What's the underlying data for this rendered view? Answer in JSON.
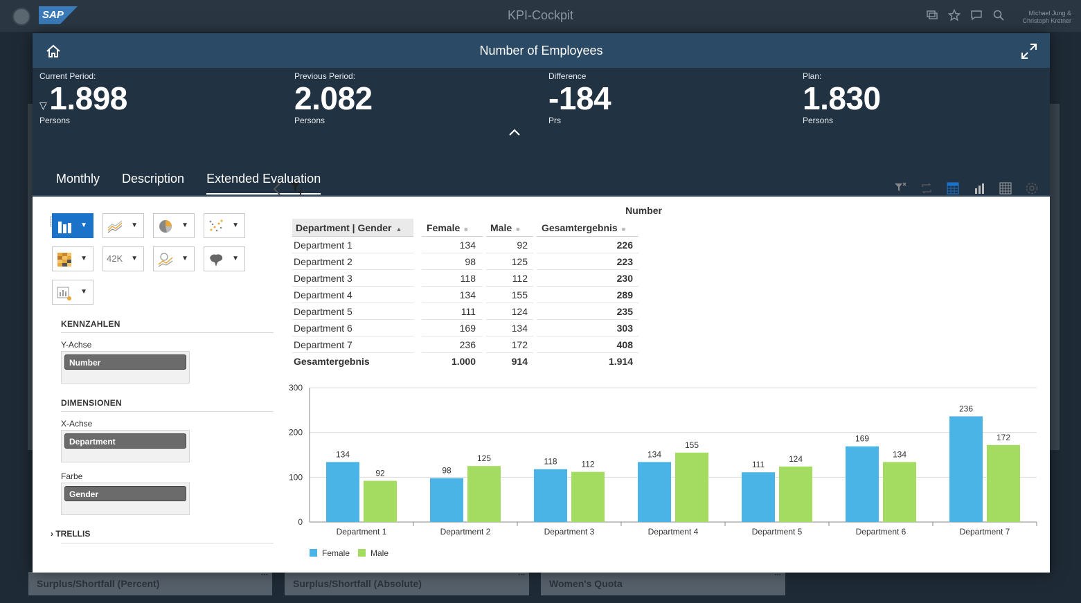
{
  "shell": {
    "title": "KPI-Cockpit",
    "logo": "SAP",
    "user_line1": "Michael Jung &",
    "user_line2": "Christoph Kretner"
  },
  "dialog": {
    "title": "Number of Employees",
    "kpis": [
      {
        "label": "Current Period:",
        "value": "1.898",
        "unit": "Persons",
        "trend": "▽"
      },
      {
        "label": "Previous Period:",
        "value": "2.082",
        "unit": "Persons"
      },
      {
        "label": "Difference",
        "value": "-184",
        "unit": "Prs"
      },
      {
        "label": "Plan:",
        "value": "1.830",
        "unit": "Persons"
      }
    ],
    "tabs": [
      "Monthly",
      "Description",
      "Extended Evaluation"
    ],
    "active_tab": "Extended Evaluation"
  },
  "panel": {
    "kennzahlen": "KENNZAHLEN",
    "y_axis_label": "Y-Achse",
    "y_axis_value": "Number",
    "dimensionen": "DIMENSIONEN",
    "x_axis_label": "X-Achse",
    "x_axis_value": "Department",
    "color_label": "Farbe",
    "color_value": "Gender",
    "trellis": "TRELLIS",
    "kpi_tile_text": "42K"
  },
  "table": {
    "measure": "Number",
    "headers": [
      "Department | Gender",
      "Female",
      "Male",
      "Gesamtergebnis"
    ],
    "rows": [
      [
        "Department 1",
        "134",
        "92",
        "226"
      ],
      [
        "Department 2",
        "98",
        "125",
        "223"
      ],
      [
        "Department 3",
        "118",
        "112",
        "230"
      ],
      [
        "Department 4",
        "134",
        "155",
        "289"
      ],
      [
        "Department 5",
        "111",
        "124",
        "235"
      ],
      [
        "Department 6",
        "169",
        "134",
        "303"
      ],
      [
        "Department 7",
        "236",
        "172",
        "408"
      ]
    ],
    "total": [
      "Gesamtergebnis",
      "1.000",
      "914",
      "1.914"
    ]
  },
  "background_cards": [
    "Surplus/Shortfall (Percent)",
    "Surplus/Shortfall (Absolute)",
    "Women's Quota"
  ],
  "colors": {
    "female": "#4bb4e6",
    "male": "#a4dc62",
    "header": "#2b4a66",
    "kpi_bg": "#213242",
    "accent": "#1b73c9"
  },
  "chart_data": {
    "type": "bar",
    "categories": [
      "Department 1",
      "Department 2",
      "Department 3",
      "Department 4",
      "Department 5",
      "Department 6",
      "Department 7"
    ],
    "series": [
      {
        "name": "Female",
        "values": [
          134,
          98,
          118,
          134,
          111,
          169,
          236
        ]
      },
      {
        "name": "Male",
        "values": [
          92,
          125,
          112,
          155,
          124,
          134,
          172
        ]
      }
    ],
    "yticks": [
      0,
      100,
      200,
      300
    ],
    "ylim": [
      0,
      300
    ],
    "grid": true,
    "legend": "bottom-left",
    "data_labels": true
  }
}
